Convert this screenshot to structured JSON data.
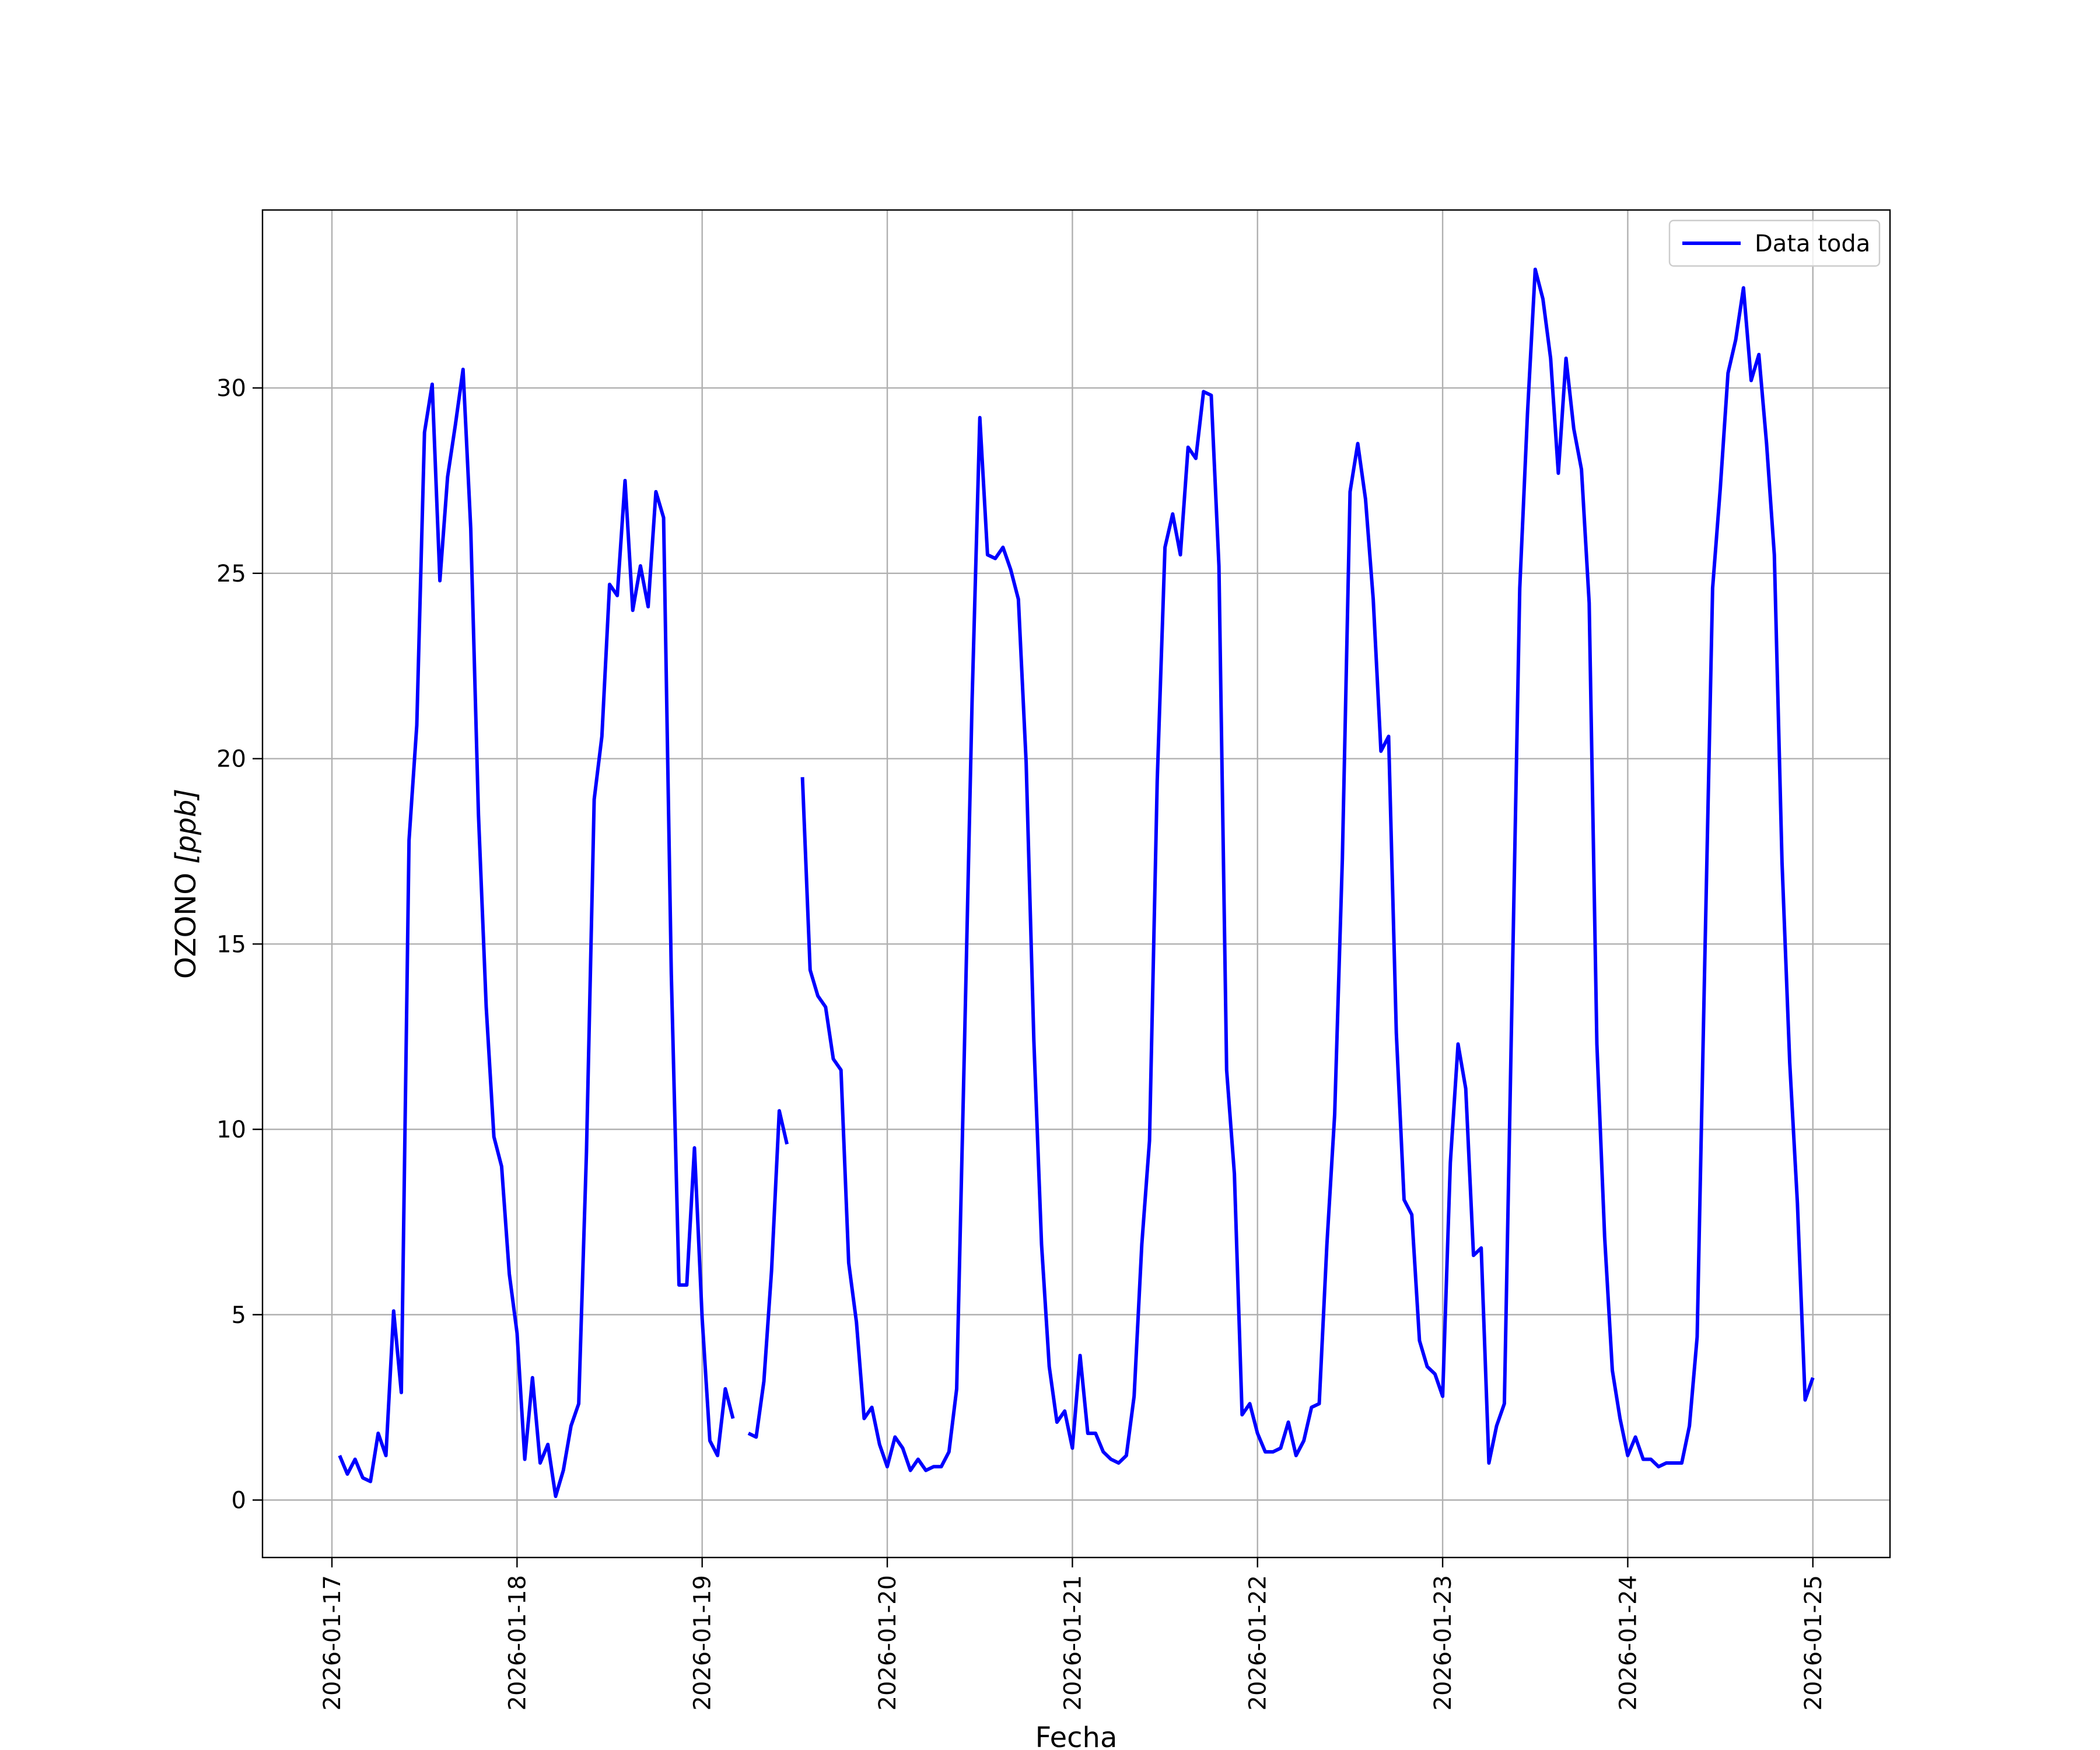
{
  "chart_data": {
    "type": "line",
    "title": "",
    "xlabel": "Fecha",
    "ylabel": "OZONO [ppb]",
    "ylabel_main": "OZONO ",
    "ylabel_unit": "[ppb]",
    "x_is_date": true,
    "xlim": [
      "2026-01-16 15:00",
      "2026-01-25 10:00"
    ],
    "ylim": [
      -1.55,
      34.8
    ],
    "yticks": [
      0,
      5,
      10,
      15,
      20,
      25,
      30
    ],
    "xticks": [
      "2026-01-17",
      "2026-01-18",
      "2026-01-19",
      "2026-01-20",
      "2026-01-21",
      "2026-01-22",
      "2026-01-23",
      "2026-01-24",
      "2026-01-25"
    ],
    "grid": true,
    "legend_position": "top-right",
    "series": [
      {
        "name": "Data toda",
        "color": "#0000ff",
        "start": "2026-01-17 01:00",
        "interval_hours": 1,
        "values": [
          1.2,
          0.7,
          1.1,
          0.6,
          0.5,
          1.8,
          1.2,
          5.1,
          2.9,
          17.8,
          20.9,
          28.8,
          30.1,
          24.8,
          27.6,
          29,
          30.5,
          26.2,
          18.5,
          13.3,
          9.8,
          9.0,
          6.1,
          4.5,
          1.1,
          3.3,
          1.0,
          1.5,
          0.1,
          0.8,
          2.0,
          2.6,
          9.4,
          18.9,
          20.6,
          24.7,
          24.4,
          27.5,
          24.0,
          25.2,
          24.1,
          27.2,
          26.5,
          14.2,
          5.8,
          5.8,
          9.5,
          4.9,
          1.6,
          1.2,
          3.0,
          2.2,
          null,
          1.8,
          1.7,
          3.2,
          6.2,
          10.5,
          9.6,
          null,
          19.5,
          14.3,
          13.6,
          13.3,
          11.9,
          11.6,
          6.4,
          4.8,
          2.2,
          2.5,
          1.5,
          0.9,
          1.7,
          1.4,
          0.8,
          1.1,
          0.8,
          0.9,
          0.9,
          1.3,
          3.0,
          12.2,
          21.6,
          29.2,
          25.5,
          25.4,
          25.7,
          25.1,
          24.3,
          19.9,
          12.4,
          6.9,
          3.6,
          2.1,
          2.4,
          1.4,
          3.9,
          1.8,
          1.8,
          1.3,
          1.1,
          1.0,
          1.2,
          2.8,
          6.9,
          9.7,
          19.4,
          25.7,
          26.6,
          25.5,
          28.4,
          28.1,
          29.9,
          29.8,
          25.2,
          11.6,
          8.8,
          2.3,
          2.6,
          1.8,
          1.3,
          1.3,
          1.4,
          2.1,
          1.2,
          1.6,
          2.5,
          2.6,
          6.9,
          10.4,
          17.3,
          27.2,
          28.5,
          27.0,
          24.3,
          20.2,
          20.6,
          12.6,
          8.1,
          7.7,
          4.3,
          3.6,
          3.4,
          2.8,
          9.1,
          12.3,
          11.1,
          6.6,
          6.8,
          1.0,
          2.0,
          2.6,
          13.6,
          24.6,
          29.3,
          33.2,
          32.4,
          30.8,
          27.7,
          30.8,
          28.9,
          27.8,
          24.2,
          12.3,
          7.1,
          3.5,
          2.2,
          1.2,
          1.7,
          1.1,
          1.1,
          0.9,
          1.0,
          1.0,
          1.0,
          2.0,
          4.4,
          14.7,
          24.6,
          27.3,
          30.4,
          31.3,
          32.7,
          30.2,
          30.9,
          28.5,
          25.5,
          17.2,
          11.8,
          8.0,
          2.7,
          3.3
        ]
      }
    ]
  }
}
